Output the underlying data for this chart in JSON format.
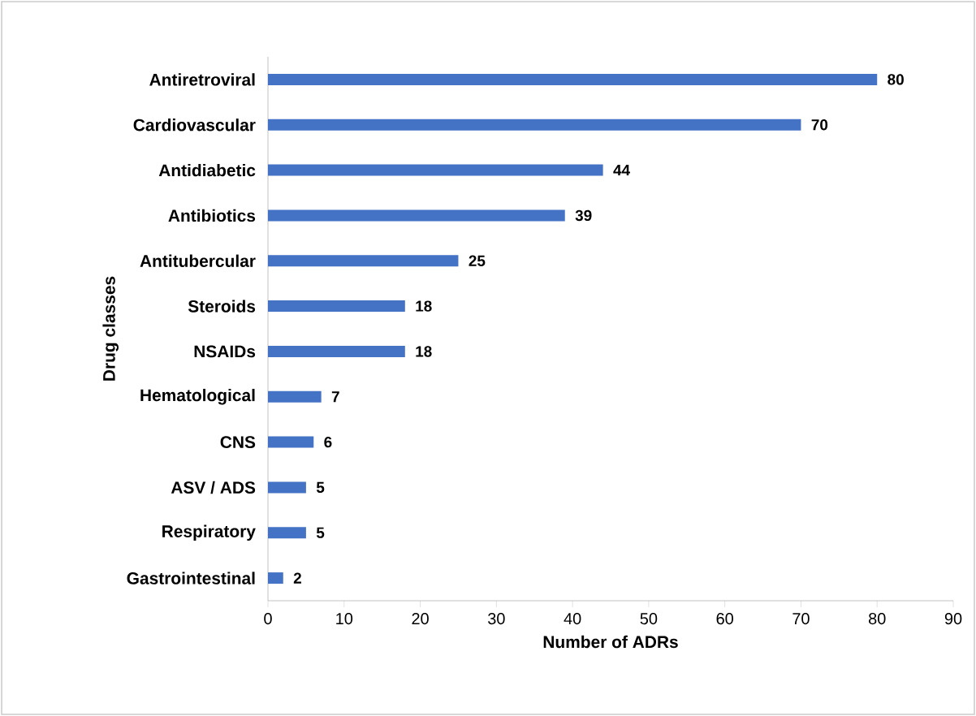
{
  "chart_data": {
    "type": "bar",
    "orientation": "horizontal",
    "ylabel": "Drug classes",
    "xlabel": "Number of ADRs",
    "categories": [
      "Antiretroviral",
      "Cardiovascular",
      "Antidiabetic",
      "Antibiotics",
      "Antitubercular",
      "Steroids",
      "NSAIDs",
      "Hematological",
      "CNS",
      "ASV / ADS",
      "Respiratory",
      "Gastrointestinal"
    ],
    "values": [
      80,
      70,
      44,
      39,
      25,
      18,
      18,
      7,
      6,
      5,
      5,
      2
    ],
    "color": "#4472c4",
    "data_labels": true,
    "xlim": [
      0,
      90
    ],
    "xticks": [
      0,
      10,
      20,
      30,
      40,
      50,
      60,
      70,
      80,
      90
    ]
  }
}
